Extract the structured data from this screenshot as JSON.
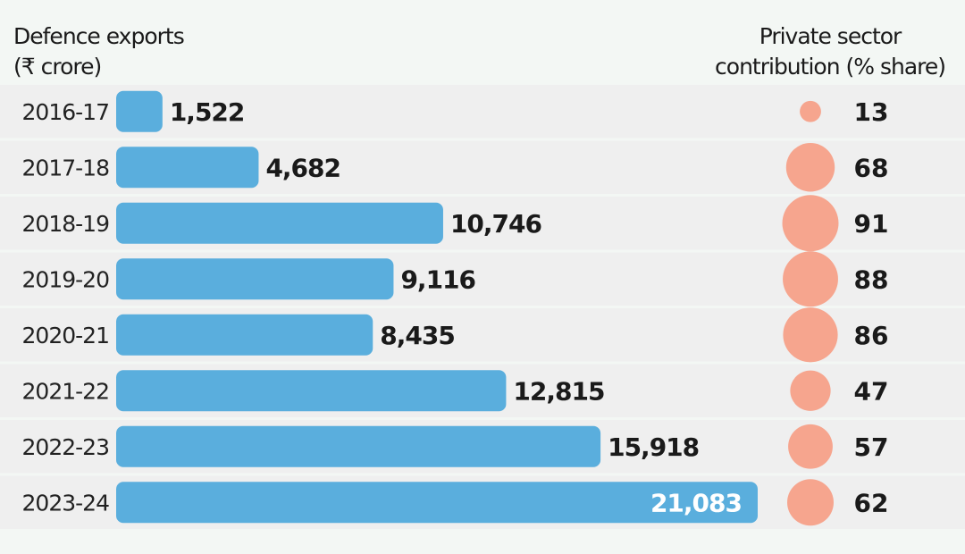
{
  "chart_data": {
    "type": "bar",
    "title_left": [
      "Defence exports",
      "(₹ crore)"
    ],
    "title_right": [
      "Private sector",
      "contribution (% share)"
    ],
    "categories": [
      "2016-17",
      "2017-18",
      "2018-19",
      "2019-20",
      "2020-21",
      "2021-22",
      "2022-23",
      "2023-24"
    ],
    "series": [
      {
        "name": "Defence exports (₹ crore)",
        "values": [
          1522,
          4682,
          10746,
          9116,
          8435,
          12815,
          15918,
          21083
        ],
        "labels": [
          "1,522",
          "4,682",
          "10,746",
          "9,116",
          "8,435",
          "12,815",
          "15,918",
          "21,083"
        ],
        "color": "#5aaedd"
      },
      {
        "name": "Private sector contribution (% share)",
        "values": [
          13,
          68,
          91,
          88,
          86,
          47,
          57,
          62
        ],
        "color": "#f6a58e"
      }
    ],
    "row_color": "#efefef"
  }
}
